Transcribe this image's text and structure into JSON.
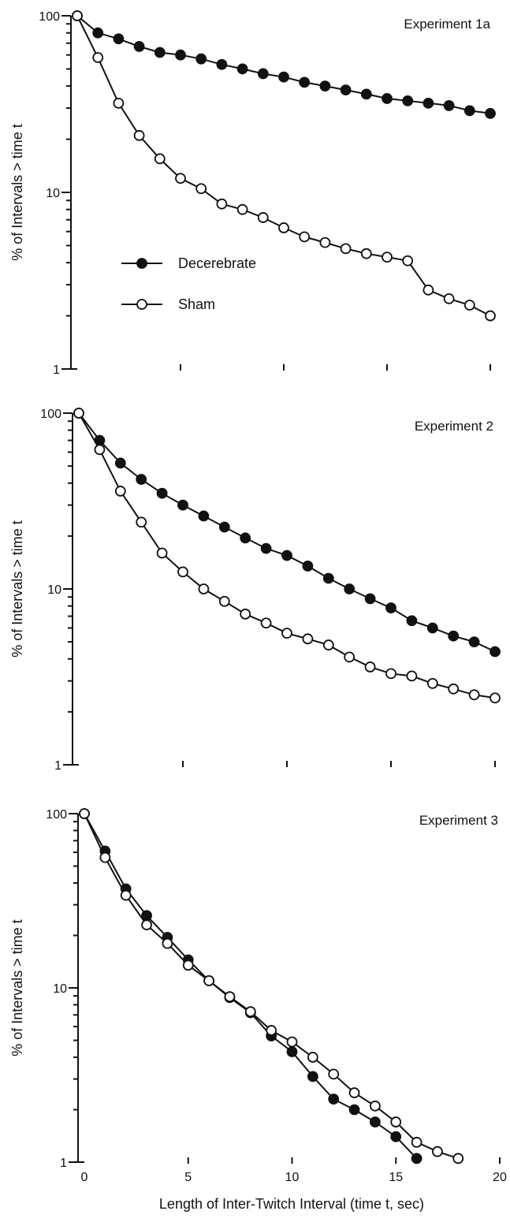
{
  "page": {
    "x_axis_label": "Length of Inter-Twitch Interval (time t, sec)"
  },
  "chart_data": [
    {
      "type": "line",
      "title": "Experiment 1a",
      "xlabel": "",
      "ylabel": "% of Intervals > time t",
      "y_scale": "log",
      "ylim": [
        1,
        100
      ],
      "xlim": [
        0,
        20
      ],
      "y_tick_labels": [
        "100",
        "10",
        "1"
      ],
      "show_x_tick_labels": false,
      "legend_placement": "lower-left",
      "series": [
        {
          "name": "Decerebrate",
          "marker": "filled-circle",
          "x": [
            0,
            1,
            2,
            3,
            4,
            5,
            6,
            7,
            8,
            9,
            10,
            11,
            12,
            13,
            14,
            15,
            16,
            17,
            18,
            19,
            20
          ],
          "values": [
            100,
            80,
            74,
            67,
            62,
            60,
            57,
            53,
            50,
            47,
            45,
            42,
            40,
            38,
            36,
            34,
            33,
            32,
            31,
            29,
            28
          ]
        },
        {
          "name": "Sham",
          "marker": "open-circle",
          "x": [
            0,
            1,
            2,
            3,
            4,
            5,
            6,
            7,
            8,
            9,
            10,
            11,
            12,
            13,
            14,
            15,
            16,
            17,
            18,
            19,
            20
          ],
          "values": [
            100,
            58,
            32,
            21,
            15.5,
            12,
            10.5,
            8.6,
            8,
            7.2,
            6.3,
            5.6,
            5.2,
            4.8,
            4.5,
            4.3,
            4.1,
            2.8,
            2.5,
            2.3,
            2.0
          ]
        }
      ]
    },
    {
      "type": "line",
      "title": "Experiment 2",
      "xlabel": "",
      "ylabel": "% of Intervals > time t",
      "y_scale": "log",
      "ylim": [
        1,
        100
      ],
      "xlim": [
        0,
        20
      ],
      "y_tick_labels": [
        "100",
        "10",
        "1"
      ],
      "show_x_tick_labels": false,
      "series": [
        {
          "name": "Decerebrate",
          "marker": "filled-circle",
          "x": [
            0,
            1,
            2,
            3,
            4,
            5,
            6,
            7,
            8,
            9,
            10,
            11,
            12,
            13,
            14,
            15,
            16,
            17,
            18,
            19,
            20
          ],
          "values": [
            100,
            70,
            52,
            42,
            35,
            30,
            26,
            22.5,
            19.5,
            17,
            15.5,
            13.5,
            11.5,
            10,
            8.8,
            7.8,
            6.6,
            6,
            5.4,
            5.0,
            4.4
          ]
        },
        {
          "name": "Sham",
          "marker": "open-circle",
          "x": [
            0,
            1,
            2,
            3,
            4,
            5,
            6,
            7,
            8,
            9,
            10,
            11,
            12,
            13,
            14,
            15,
            16,
            17,
            18,
            19,
            20
          ],
          "values": [
            100,
            62,
            36,
            24,
            16,
            12.5,
            10,
            8.5,
            7.2,
            6.4,
            5.6,
            5.2,
            4.8,
            4.1,
            3.6,
            3.3,
            3.2,
            2.9,
            2.7,
            2.5,
            2.4
          ]
        }
      ]
    },
    {
      "type": "line",
      "title": "Experiment 3",
      "xlabel": "Length of Inter-Twitch Interval (time t, sec)",
      "ylabel": "% of Intervals > time t",
      "y_scale": "log",
      "ylim": [
        1,
        100
      ],
      "xlim": [
        0,
        20
      ],
      "y_tick_labels": [
        "100",
        "10",
        "1"
      ],
      "x_tick_labels": [
        "0",
        "5",
        "10",
        "15",
        "20"
      ],
      "show_x_tick_labels": true,
      "series": [
        {
          "name": "Decerebrate",
          "marker": "filled-circle",
          "x": [
            0,
            1,
            2,
            3,
            4,
            5,
            6,
            7,
            8,
            9,
            10,
            11,
            12,
            13,
            14,
            15,
            16
          ],
          "values": [
            100,
            61,
            37,
            26,
            19.5,
            14.5,
            11,
            8.8,
            7.2,
            5.3,
            4.3,
            3.1,
            2.3,
            2.0,
            1.7,
            1.4,
            1.05
          ]
        },
        {
          "name": "Sham",
          "marker": "open-circle",
          "x": [
            0,
            1,
            2,
            3,
            4,
            5,
            6,
            7,
            8,
            9,
            10,
            11,
            12,
            13,
            14,
            15,
            16,
            17,
            18
          ],
          "values": [
            100,
            56,
            34,
            23,
            18,
            13.5,
            11,
            8.9,
            7.3,
            5.7,
            4.9,
            4.0,
            3.2,
            2.5,
            2.1,
            1.7,
            1.3,
            1.15,
            1.05
          ]
        }
      ]
    }
  ]
}
